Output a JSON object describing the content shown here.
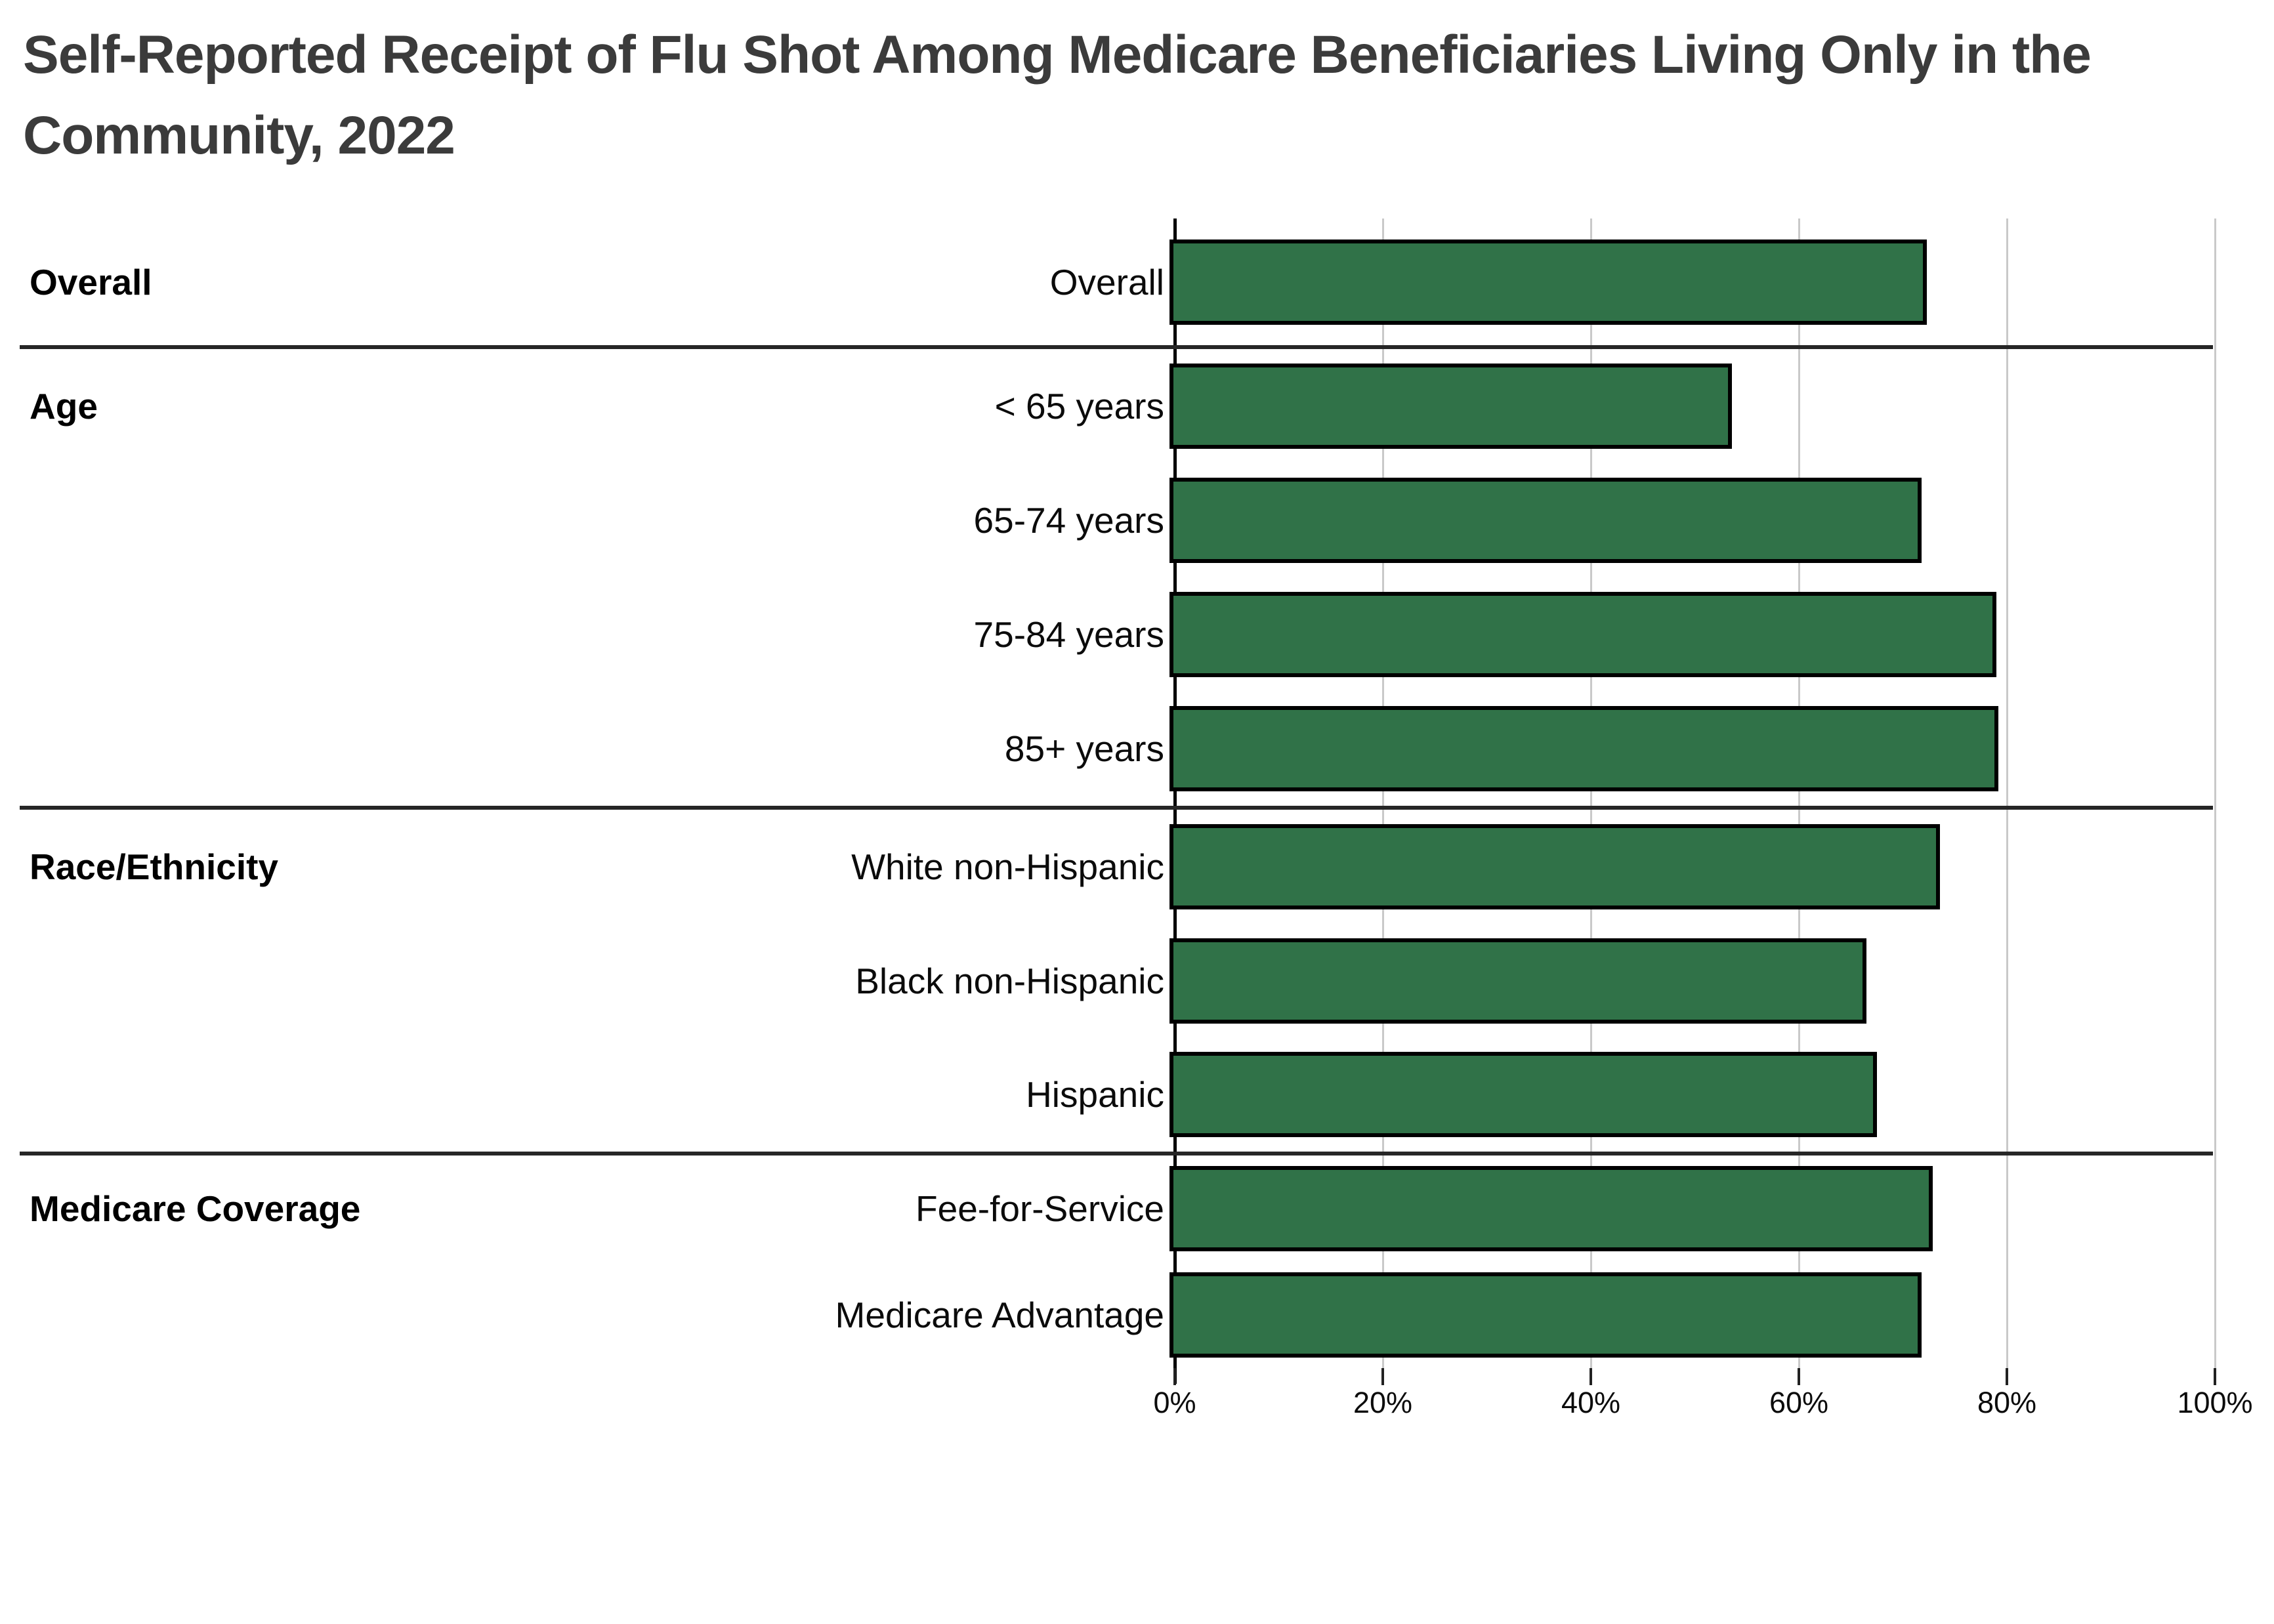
{
  "title": {
    "lines": [
      "Self-Reported Receipt of Flu Shot Among Medicare Beneficiaries Living Only in the",
      "Community, 2022"
    ]
  },
  "chart_data": {
    "type": "bar",
    "orientation": "horizontal",
    "unit": "percent",
    "title": "Self-Reported Receipt of Flu Shot Among Medicare Beneficiaries Living Only in the Community, 2022",
    "xlabel": "",
    "ylabel": "",
    "xlim": [
      0,
      100
    ],
    "x_tick_labels": [
      "0%",
      "20%",
      "40%",
      "60%",
      "80%",
      "100%"
    ],
    "x_tick_values": [
      0,
      20,
      40,
      60,
      80,
      100
    ],
    "grid": true,
    "legend": "none",
    "sections": [
      {
        "label": "Overall",
        "rows": [
          {
            "label": "Overall",
            "value": 72.8
          }
        ]
      },
      {
        "label": "Age",
        "rows": [
          {
            "label": "< 65 years",
            "value": 54.1
          },
          {
            "label": "65-74 years",
            "value": 72.3
          },
          {
            "label": "75-84 years",
            "value": 79.5
          },
          {
            "label": "85+ years",
            "value": 79.7
          }
        ]
      },
      {
        "label": "Race/Ethnicity",
        "rows": [
          {
            "label": "White non-Hispanic",
            "value": 74.1
          },
          {
            "label": "Black non-Hispanic",
            "value": 67.0
          },
          {
            "label": "Hispanic",
            "value": 68.0
          }
        ]
      },
      {
        "label": "Medicare Coverage",
        "rows": [
          {
            "label": "Fee-for-Service",
            "value": 73.4
          },
          {
            "label": "Medicare Advantage",
            "value": 72.3
          }
        ]
      }
    ],
    "colors": {
      "bar_fill": "#307248",
      "bar_border": "#000000",
      "gridline": "#c9c9c9",
      "axis_line": "#000000",
      "tick_mark": "#222222",
      "section_divider": "#262626",
      "title_text": "#3b3b3b",
      "label_text": "#0b0b0b"
    }
  }
}
